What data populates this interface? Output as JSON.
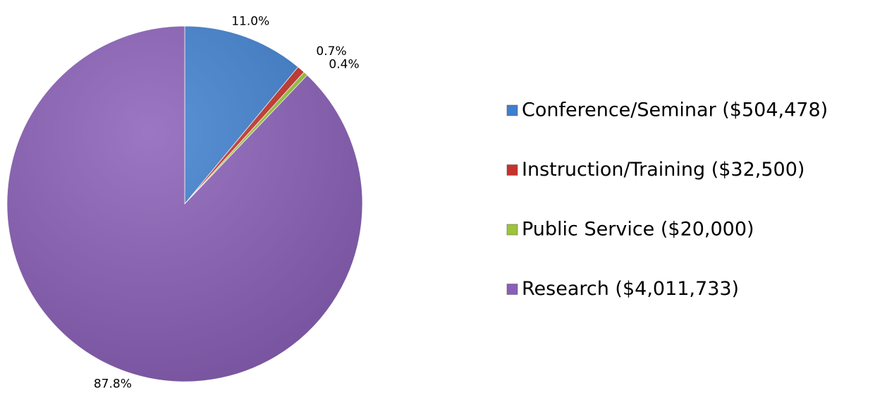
{
  "chart_data": {
    "type": "pie",
    "categories": [
      "Conference/Seminar ($504,478)",
      "Instruction/Training ($32,500)",
      "Public Service ($20,000)",
      "Research ($4,011,733)"
    ],
    "values": [
      11.0,
      0.7,
      0.4,
      87.8
    ],
    "value_labels": [
      "11.0%",
      "0.7%",
      "0.4%",
      "87.8%"
    ],
    "colors": [
      "#3f7fcf",
      "#c6332c",
      "#9cc53b",
      "#8a5fb8"
    ],
    "legend": "right"
  }
}
